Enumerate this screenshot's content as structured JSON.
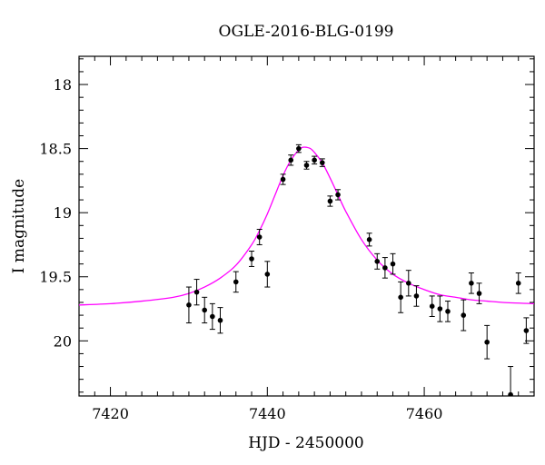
{
  "chart_data": {
    "type": "scatter",
    "title": "OGLE-2016-BLG-0199",
    "xlabel": "HJD - 2450000",
    "ylabel": "I magnitude",
    "xlim": [
      7416,
      7474
    ],
    "ylim": [
      20.43,
      17.78
    ],
    "y_inverted": true,
    "x_major_ticks": [
      7420,
      7440,
      7460
    ],
    "x_minor_step": 2,
    "y_major_ticks": [
      18,
      18.5,
      19,
      19.5,
      20
    ],
    "y_major_tick_labels": [
      "18",
      "18.5",
      "19",
      "19.5",
      "20"
    ],
    "y_minor_step": 0.1,
    "grid": false,
    "marker_color": "#000000",
    "model_color": "#ff00ff",
    "observations": [
      {
        "x": 7430.0,
        "y": 19.72,
        "err": 0.14
      },
      {
        "x": 7431.0,
        "y": 19.62,
        "err": 0.1
      },
      {
        "x": 7432.0,
        "y": 19.76,
        "err": 0.1
      },
      {
        "x": 7433.0,
        "y": 19.81,
        "err": 0.1
      },
      {
        "x": 7434.0,
        "y": 19.84,
        "err": 0.1
      },
      {
        "x": 7436.0,
        "y": 19.54,
        "err": 0.08
      },
      {
        "x": 7438.0,
        "y": 19.36,
        "err": 0.06
      },
      {
        "x": 7439.0,
        "y": 19.19,
        "err": 0.06
      },
      {
        "x": 7440.0,
        "y": 19.48,
        "err": 0.1
      },
      {
        "x": 7442.0,
        "y": 18.74,
        "err": 0.04
      },
      {
        "x": 7443.0,
        "y": 18.59,
        "err": 0.04
      },
      {
        "x": 7444.0,
        "y": 18.5,
        "err": 0.03
      },
      {
        "x": 7445.0,
        "y": 18.63,
        "err": 0.03
      },
      {
        "x": 7446.0,
        "y": 18.59,
        "err": 0.03
      },
      {
        "x": 7447.0,
        "y": 18.61,
        "err": 0.03
      },
      {
        "x": 7448.0,
        "y": 18.91,
        "err": 0.04
      },
      {
        "x": 7449.0,
        "y": 18.86,
        "err": 0.04
      },
      {
        "x": 7453.0,
        "y": 19.21,
        "err": 0.05
      },
      {
        "x": 7454.0,
        "y": 19.38,
        "err": 0.06
      },
      {
        "x": 7455.0,
        "y": 19.43,
        "err": 0.08
      },
      {
        "x": 7456.0,
        "y": 19.4,
        "err": 0.08
      },
      {
        "x": 7457.0,
        "y": 19.66,
        "err": 0.12
      },
      {
        "x": 7458.0,
        "y": 19.55,
        "err": 0.1
      },
      {
        "x": 7459.0,
        "y": 19.65,
        "err": 0.08
      },
      {
        "x": 7461.0,
        "y": 19.73,
        "err": 0.08
      },
      {
        "x": 7462.0,
        "y": 19.75,
        "err": 0.1
      },
      {
        "x": 7463.0,
        "y": 19.77,
        "err": 0.08
      },
      {
        "x": 7465.0,
        "y": 19.8,
        "err": 0.12
      },
      {
        "x": 7466.0,
        "y": 19.55,
        "err": 0.08
      },
      {
        "x": 7467.0,
        "y": 19.63,
        "err": 0.08
      },
      {
        "x": 7468.0,
        "y": 20.01,
        "err": 0.13
      },
      {
        "x": 7471.0,
        "y": 20.42,
        "err": 0.22
      },
      {
        "x": 7472.0,
        "y": 19.55,
        "err": 0.08
      },
      {
        "x": 7473.0,
        "y": 19.92,
        "err": 0.1
      }
    ],
    "model": {
      "x": [
        7416,
        7420,
        7424,
        7428,
        7430,
        7432,
        7434,
        7436,
        7438,
        7439,
        7440,
        7441,
        7442,
        7443,
        7444,
        7444.5,
        7445,
        7445.5,
        7446,
        7447,
        7448,
        7449,
        7450,
        7452,
        7454,
        7456,
        7458,
        7460,
        7462,
        7464,
        7466,
        7468,
        7470,
        7474
      ],
      "y": [
        19.72,
        19.71,
        19.69,
        19.66,
        19.63,
        19.58,
        19.51,
        19.41,
        19.25,
        19.14,
        19.01,
        18.86,
        18.71,
        18.59,
        18.51,
        18.49,
        18.49,
        18.5,
        18.53,
        18.61,
        18.73,
        18.86,
        18.99,
        19.21,
        19.37,
        19.48,
        19.55,
        19.6,
        19.64,
        19.66,
        19.68,
        19.69,
        19.7,
        19.71
      ]
    }
  }
}
